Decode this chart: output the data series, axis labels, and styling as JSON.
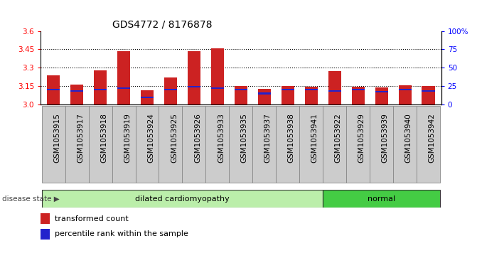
{
  "title": "GDS4772 / 8176878",
  "samples": [
    "GSM1053915",
    "GSM1053917",
    "GSM1053918",
    "GSM1053919",
    "GSM1053924",
    "GSM1053925",
    "GSM1053926",
    "GSM1053933",
    "GSM1053935",
    "GSM1053937",
    "GSM1053938",
    "GSM1053941",
    "GSM1053922",
    "GSM1053929",
    "GSM1053939",
    "GSM1053940",
    "GSM1053942"
  ],
  "transformed_count": [
    3.24,
    3.16,
    3.28,
    3.435,
    3.115,
    3.22,
    3.435,
    3.46,
    3.148,
    3.125,
    3.148,
    3.145,
    3.275,
    3.145,
    3.138,
    3.155,
    3.148
  ],
  "percentile_rank": [
    20,
    18,
    20,
    22,
    10,
    20,
    24,
    22,
    20,
    15,
    20,
    20,
    18,
    20,
    17,
    20,
    18
  ],
  "groups": [
    {
      "text": "dilated cardiomyopathy",
      "start": 0,
      "end": 12,
      "color": "#bbeeaa"
    },
    {
      "text": "normal",
      "start": 12,
      "end": 17,
      "color": "#44cc44"
    }
  ],
  "ylim_left": [
    3.0,
    3.6
  ],
  "ylim_right": [
    0,
    100
  ],
  "yticks_left": [
    3.0,
    3.15,
    3.3,
    3.45,
    3.6
  ],
  "yticks_right": [
    0,
    25,
    50,
    75,
    100
  ],
  "ytick_labels_right": [
    "0",
    "25",
    "50",
    "75",
    "100%"
  ],
  "bar_color_red": "#cc2222",
  "bar_color_blue": "#2222cc",
  "bar_bottom": 3.0,
  "background_color": "#ffffff",
  "title_fontsize": 10,
  "tick_fontsize": 7.5,
  "legend_label_red": "transformed count",
  "legend_label_blue": "percentile rank within the sample",
  "disease_state_label": "disease state"
}
